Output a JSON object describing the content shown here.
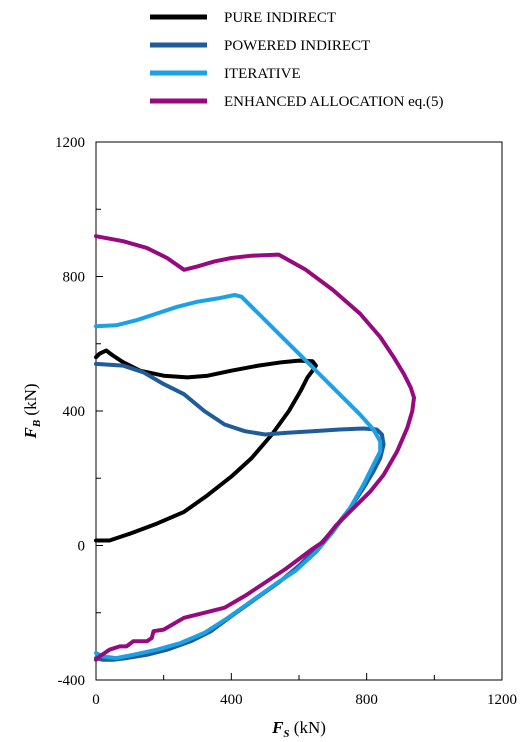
{
  "chart_data": {
    "type": "line",
    "title": "",
    "xlabel": {
      "symbol": "F",
      "subscript": "S",
      "unit": "(kN)"
    },
    "ylabel": {
      "symbol": "F",
      "subscript": "B",
      "unit": "(kN)"
    },
    "xlim": [
      0,
      1200
    ],
    "ylim": [
      -400,
      1200
    ],
    "x_ticks": [
      "0",
      "400",
      "800",
      "1200"
    ],
    "y_ticks": [
      "-400",
      "0",
      "400",
      "800",
      "1200"
    ],
    "grid": false,
    "legend_position": "top",
    "series": [
      {
        "name": "PURE INDIRECT",
        "color": "#000000",
        "points": [
          [
            0,
            15
          ],
          [
            40,
            15
          ],
          [
            100,
            35
          ],
          [
            180,
            65
          ],
          [
            260,
            100
          ],
          [
            330,
            150
          ],
          [
            400,
            205
          ],
          [
            460,
            260
          ],
          [
            520,
            330
          ],
          [
            570,
            400
          ],
          [
            605,
            460
          ],
          [
            625,
            500
          ],
          [
            640,
            520
          ],
          [
            650,
            535
          ],
          [
            640,
            548
          ],
          [
            600,
            550
          ],
          [
            550,
            545
          ],
          [
            480,
            535
          ],
          [
            400,
            520
          ],
          [
            330,
            505
          ],
          [
            270,
            500
          ],
          [
            200,
            505
          ],
          [
            130,
            520
          ],
          [
            80,
            545
          ],
          [
            50,
            565
          ],
          [
            30,
            580
          ],
          [
            10,
            570
          ],
          [
            0,
            560
          ]
        ]
      },
      {
        "name": "POWERED INDIRECT",
        "color": "#1f5c99",
        "points": [
          [
            0,
            540
          ],
          [
            80,
            535
          ],
          [
            140,
            515
          ],
          [
            200,
            480
          ],
          [
            260,
            450
          ],
          [
            320,
            400
          ],
          [
            380,
            360
          ],
          [
            440,
            340
          ],
          [
            500,
            330
          ],
          [
            560,
            335
          ],
          [
            640,
            340
          ],
          [
            720,
            345
          ],
          [
            790,
            348
          ],
          [
            830,
            345
          ],
          [
            845,
            330
          ],
          [
            850,
            300
          ],
          [
            840,
            260
          ],
          [
            820,
            220
          ],
          [
            790,
            170
          ],
          [
            750,
            110
          ],
          [
            700,
            45
          ],
          [
            650,
            -10
          ],
          [
            600,
            -60
          ],
          [
            540,
            -110
          ],
          [
            470,
            -160
          ],
          [
            400,
            -210
          ],
          [
            340,
            -255
          ],
          [
            280,
            -285
          ],
          [
            210,
            -310
          ],
          [
            150,
            -325
          ],
          [
            90,
            -335
          ],
          [
            50,
            -340
          ],
          [
            20,
            -340
          ],
          [
            0,
            -335
          ]
        ]
      },
      {
        "name": "ITERATIVE",
        "color": "#1da1e6",
        "points": [
          [
            0,
            652
          ],
          [
            60,
            655
          ],
          [
            120,
            670
          ],
          [
            180,
            690
          ],
          [
            240,
            710
          ],
          [
            300,
            725
          ],
          [
            360,
            735
          ],
          [
            410,
            745
          ],
          [
            430,
            740
          ],
          [
            480,
            690
          ],
          [
            540,
            630
          ],
          [
            600,
            570
          ],
          [
            660,
            510
          ],
          [
            720,
            450
          ],
          [
            780,
            390
          ],
          [
            820,
            345
          ],
          [
            840,
            310
          ],
          [
            840,
            280
          ],
          [
            820,
            240
          ],
          [
            790,
            180
          ],
          [
            750,
            110
          ],
          [
            700,
            40
          ],
          [
            650,
            -20
          ],
          [
            590,
            -75
          ],
          [
            530,
            -115
          ],
          [
            460,
            -165
          ],
          [
            390,
            -215
          ],
          [
            320,
            -260
          ],
          [
            250,
            -290
          ],
          [
            180,
            -310
          ],
          [
            110,
            -325
          ],
          [
            60,
            -335
          ],
          [
            20,
            -330
          ],
          [
            0,
            -320
          ]
        ]
      },
      {
        "name": "ENHANCED ALLOCATION eq.(5)",
        "color": "#970a7f",
        "points": [
          [
            0,
            920
          ],
          [
            80,
            905
          ],
          [
            150,
            885
          ],
          [
            210,
            855
          ],
          [
            260,
            820
          ],
          [
            300,
            830
          ],
          [
            350,
            845
          ],
          [
            400,
            855
          ],
          [
            460,
            862
          ],
          [
            540,
            865
          ],
          [
            620,
            820
          ],
          [
            700,
            760
          ],
          [
            780,
            690
          ],
          [
            840,
            620
          ],
          [
            880,
            560
          ],
          [
            910,
            510
          ],
          [
            930,
            470
          ],
          [
            940,
            440
          ],
          [
            935,
            400
          ],
          [
            920,
            350
          ],
          [
            890,
            280
          ],
          [
            850,
            210
          ],
          [
            810,
            160
          ],
          [
            760,
            110
          ],
          [
            710,
            60
          ],
          [
            670,
            10
          ],
          [
            640,
            -10
          ],
          [
            600,
            -40
          ],
          [
            560,
            -70
          ],
          [
            500,
            -110
          ],
          [
            440,
            -150
          ],
          [
            380,
            -185
          ],
          [
            320,
            -200
          ],
          [
            260,
            -215
          ],
          [
            200,
            -250
          ],
          [
            170,
            -255
          ],
          [
            165,
            -275
          ],
          [
            150,
            -285
          ],
          [
            110,
            -285
          ],
          [
            90,
            -300
          ],
          [
            70,
            -300
          ],
          [
            40,
            -310
          ],
          [
            25,
            -320
          ],
          [
            10,
            -330
          ],
          [
            0,
            -340
          ]
        ]
      }
    ]
  }
}
